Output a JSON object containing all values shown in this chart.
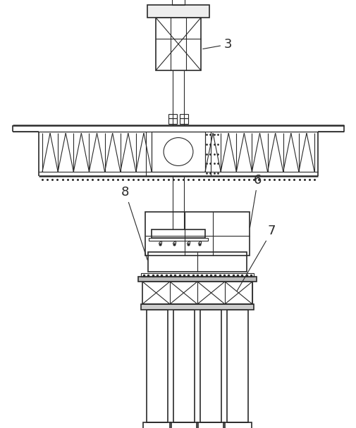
{
  "bg_color": "#ffffff",
  "line_color": "#2a2a2a",
  "fig_width": 5.06,
  "fig_height": 6.08,
  "dpi": 100
}
